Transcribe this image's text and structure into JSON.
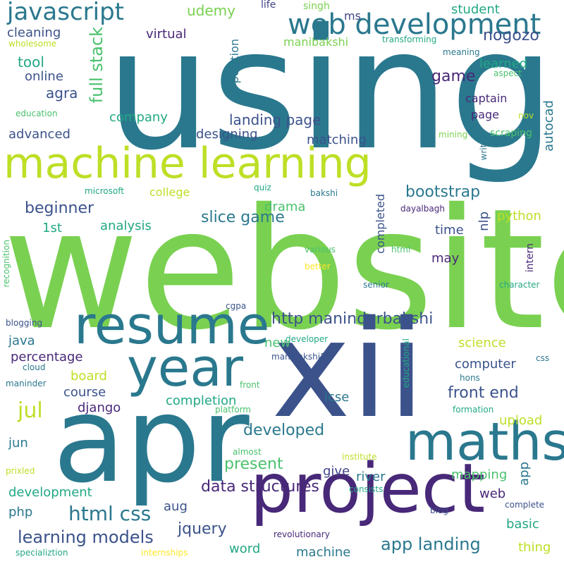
{
  "palette": {
    "green": "#7ad151",
    "lime": "#bddf26",
    "teal": "#22a884",
    "blue": "#2a788e",
    "navy": "#3b528b",
    "purple": "#482878",
    "indigo": "#414487",
    "yellow": "#fde725",
    "sea": "#1fa187",
    "mint": "#4ac16d"
  },
  "words": [
    "using",
    "website",
    "machine learning",
    "apr",
    "xii",
    "project",
    "resume",
    "year",
    "maths",
    "web development",
    "javascript",
    "udemy",
    "life",
    "singh",
    "ms",
    "student",
    "nogozo",
    "cleaning",
    "virtual",
    "manibakshi",
    "transforming",
    "wholesome",
    "tool",
    "online",
    "agra",
    "full stack",
    "learned",
    "meaning",
    "game",
    "aspect",
    "position",
    "captain",
    "education",
    "company",
    "landing page",
    "page",
    "nov",
    "autocad",
    "advanced",
    "designing",
    "matching",
    "mining",
    "written",
    "scraping",
    "bootstrap",
    "beginner",
    "microsoft",
    "college",
    "quiz",
    "bakshi",
    "completed",
    "dayalbagh",
    "slice game",
    "drama",
    "python",
    "1st",
    "analysis",
    "nlp",
    "time",
    "various",
    "html",
    "intern",
    "recognition",
    "may",
    "better",
    "senior",
    "character",
    "cgpa",
    "http maninderbakshi",
    "blogging",
    "java",
    "developer",
    "new",
    "science",
    "percentage",
    "manibakshi26",
    "board",
    "computer",
    "hons",
    "cloud",
    "css",
    "maninder",
    "front",
    "front end",
    "course",
    "completion",
    "icse",
    "django",
    "jul",
    "educational",
    "formation",
    "platform",
    "upload",
    "developed",
    "jun",
    "almost",
    "present",
    "institute",
    "prixled",
    "give",
    "mapping",
    "app",
    "development",
    "river",
    "consists",
    "web",
    "php",
    "data structures",
    "html css",
    "aug",
    "jquery",
    "basic",
    "blog",
    "complete",
    "learning models",
    "app landing",
    "word",
    "revolutionary",
    "machine",
    "thing",
    "specializtion",
    "internships"
  ]
}
